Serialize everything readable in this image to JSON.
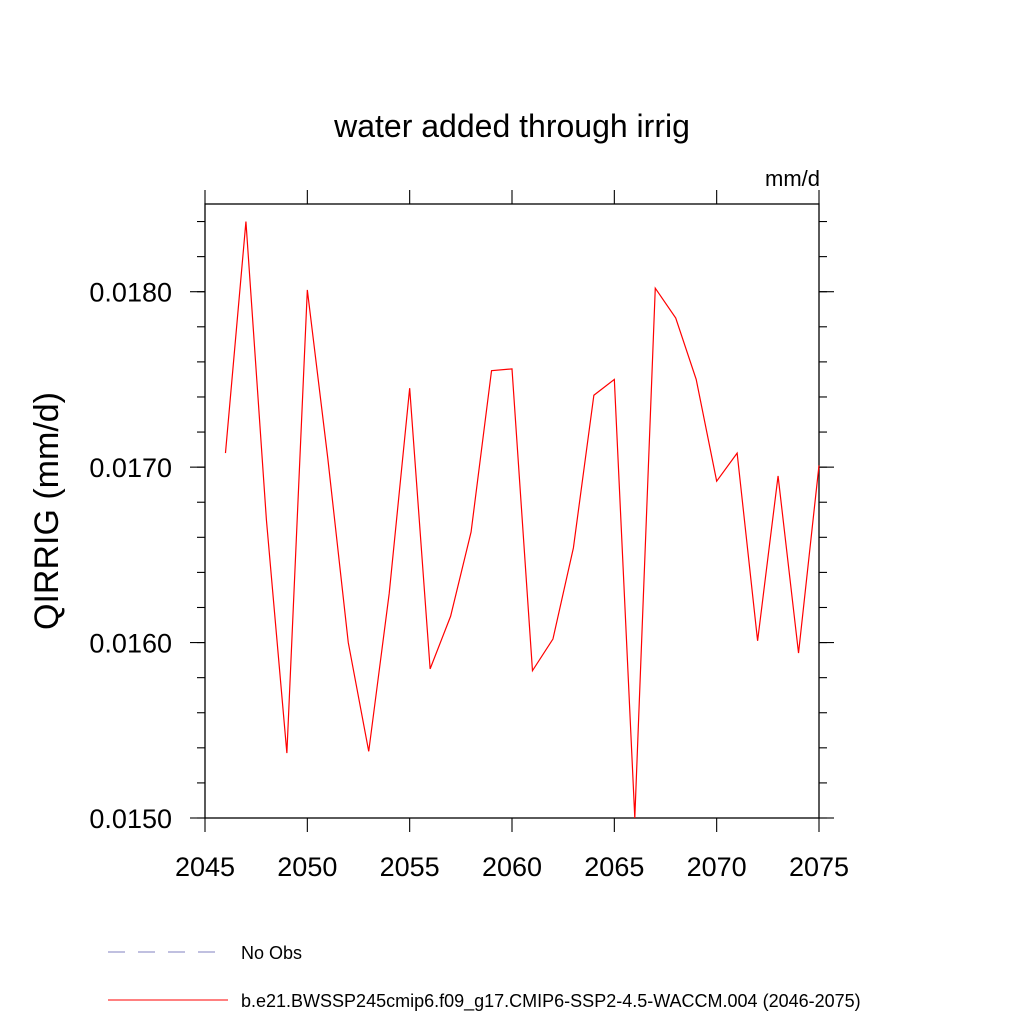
{
  "chart_data": {
    "type": "line",
    "title": "water added through irrig",
    "units_label": "mm/d",
    "xlabel": "",
    "ylabel": "QIRRIG  (mm/d)",
    "xlim": [
      2045,
      2075
    ],
    "ylim": [
      0.015,
      0.0185
    ],
    "x_ticks": [
      2045,
      2050,
      2055,
      2060,
      2065,
      2070,
      2075
    ],
    "x_tick_labels": [
      "2045",
      "2050",
      "2055",
      "2060",
      "2065",
      "2070",
      "2075"
    ],
    "y_ticks": [
      0.015,
      0.016,
      0.017,
      0.018
    ],
    "y_tick_labels": [
      "0.0150",
      "0.0160",
      "0.0170",
      "0.0180"
    ],
    "grid": false,
    "series": [
      {
        "name": "b.e21.BWSSP245cmip6.f09_g17.CMIP6-SSP2-4.5-WACCM.004 (2046-2075)",
        "color": "#ff0000",
        "x": [
          2046,
          2047,
          2048,
          2049,
          2050,
          2051,
          2052,
          2053,
          2054,
          2055,
          2056,
          2057,
          2058,
          2059,
          2060,
          2061,
          2062,
          2063,
          2064,
          2065,
          2066,
          2067,
          2068,
          2069,
          2070,
          2071,
          2072,
          2073,
          2074,
          2075
        ],
        "values": [
          0.01708,
          0.0184,
          0.0167,
          0.01537,
          0.01801,
          0.01705,
          0.016,
          0.01538,
          0.01628,
          0.01745,
          0.01585,
          0.01615,
          0.01663,
          0.01755,
          0.01756,
          0.01584,
          0.01602,
          0.01654,
          0.01741,
          0.0175,
          0.015,
          0.01802,
          0.01785,
          0.0175,
          0.01692,
          0.01708,
          0.01601,
          0.01695,
          0.01594,
          0.01701
        ]
      }
    ],
    "legend": [
      {
        "label": "No Obs",
        "color": "#8080c0",
        "style": "dashed"
      },
      {
        "label": "b.e21.BWSSP245cmip6.f09_g17.CMIP6-SSP2-4.5-WACCM.004 (2046-2075)",
        "color": "#ff0000",
        "style": "solid"
      }
    ],
    "legend_position": "bottom"
  }
}
